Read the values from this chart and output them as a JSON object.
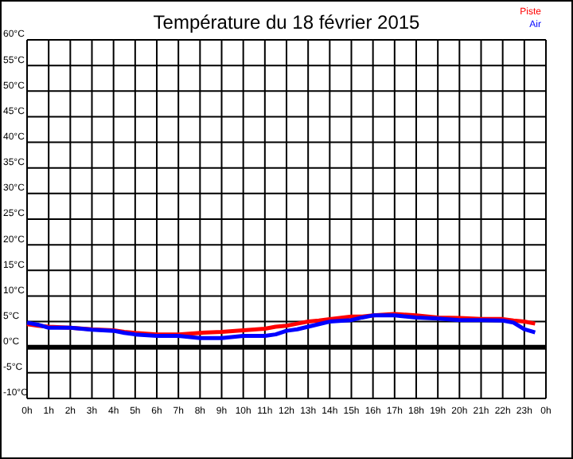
{
  "chart_data": {
    "type": "line",
    "title": "Température du 18 février 2015",
    "x": [
      "2015-02-18T00:00",
      "2015-02-18T00:30",
      "2015-02-18T01:00",
      "2015-02-18T02:00",
      "2015-02-18T03:00",
      "2015-02-18T04:00",
      "2015-02-18T04:30",
      "2015-02-18T05:00",
      "2015-02-18T06:00",
      "2015-02-18T07:00",
      "2015-02-18T08:00",
      "2015-02-18T09:00",
      "2015-02-18T10:00",
      "2015-02-18T11:00",
      "2015-02-18T11:30",
      "2015-02-18T12:00",
      "2015-02-18T12:30",
      "2015-02-18T13:00",
      "2015-02-18T13:30",
      "2015-02-18T14:00",
      "2015-02-18T15:00",
      "2015-02-18T15:30",
      "2015-02-18T16:00",
      "2015-02-18T17:00",
      "2015-02-18T18:00",
      "2015-02-18T19:00",
      "2015-02-18T20:00",
      "2015-02-18T21:00",
      "2015-02-18T22:00",
      "2015-02-18T22:30",
      "2015-02-18T23:00",
      "2015-02-18T23:30"
    ],
    "series": [
      {
        "name": "Piste",
        "color": "#ff0000",
        "values": [
          4.5,
          4.2,
          4,
          3.8,
          3.5,
          3.3,
          3,
          2.8,
          2.5,
          2.5,
          2.8,
          3,
          3.3,
          3.6,
          4,
          4.2,
          4.6,
          5,
          5.2,
          5.5,
          6,
          6,
          6.2,
          6.5,
          6.2,
          5.8,
          5.7,
          5.5,
          5.5,
          5.2,
          5,
          4.6
        ]
      },
      {
        "name": "Air",
        "color": "#0000ff",
        "values": [
          4.8,
          4.4,
          3.8,
          3.8,
          3.4,
          3.2,
          2.8,
          2.5,
          2.2,
          2.2,
          1.8,
          1.8,
          2.2,
          2.2,
          2.5,
          3.2,
          3.5,
          4,
          4.5,
          5,
          5.3,
          5.8,
          6.2,
          6.2,
          5.8,
          5.6,
          5.3,
          5.3,
          5.2,
          4.8,
          3.5,
          2.9
        ]
      }
    ],
    "xlim": [
      "2015-02-18T00:00",
      "2015-02-19T00:00"
    ],
    "xticks": [
      {
        "value": "2015-02-18T00:00",
        "label": "0h"
      },
      {
        "value": "2015-02-18T01:00",
        "label": "1h"
      },
      {
        "value": "2015-02-18T02:00",
        "label": "2h"
      },
      {
        "value": "2015-02-18T03:00",
        "label": "3h"
      },
      {
        "value": "2015-02-18T04:00",
        "label": "4h"
      },
      {
        "value": "2015-02-18T05:00",
        "label": "5h"
      },
      {
        "value": "2015-02-18T06:00",
        "label": "6h"
      },
      {
        "value": "2015-02-18T07:00",
        "label": "7h"
      },
      {
        "value": "2015-02-18T08:00",
        "label": "8h"
      },
      {
        "value": "2015-02-18T09:00",
        "label": "9h"
      },
      {
        "value": "2015-02-18T10:00",
        "label": "10h"
      },
      {
        "value": "2015-02-18T11:00",
        "label": "11h"
      },
      {
        "value": "2015-02-18T12:00",
        "label": "12h"
      },
      {
        "value": "2015-02-18T13:00",
        "label": "13h"
      },
      {
        "value": "2015-02-18T14:00",
        "label": "14h"
      },
      {
        "value": "2015-02-18T15:00",
        "label": "15h"
      },
      {
        "value": "2015-02-18T16:00",
        "label": "16h"
      },
      {
        "value": "2015-02-18T17:00",
        "label": "17h"
      },
      {
        "value": "2015-02-18T18:00",
        "label": "18h"
      },
      {
        "value": "2015-02-18T19:00",
        "label": "19h"
      },
      {
        "value": "2015-02-18T20:00",
        "label": "20h"
      },
      {
        "value": "2015-02-18T21:00",
        "label": "21h"
      },
      {
        "value": "2015-02-18T22:00",
        "label": "22h"
      },
      {
        "value": "2015-02-18T23:00",
        "label": "23h"
      },
      {
        "value": "2015-02-19T00:00",
        "label": "0h"
      }
    ],
    "ylim": [
      -10,
      60
    ],
    "yticks": [
      {
        "value": -10,
        "label": "-10°C"
      },
      {
        "value": -5,
        "label": "-5°C"
      },
      {
        "value": 0,
        "label": "0°C"
      },
      {
        "value": 5,
        "label": "5°C"
      },
      {
        "value": 10,
        "label": "10°C"
      },
      {
        "value": 15,
        "label": "15°C"
      },
      {
        "value": 20,
        "label": "20°C"
      },
      {
        "value": 25,
        "label": "25°C"
      },
      {
        "value": 30,
        "label": "30°C"
      },
      {
        "value": 35,
        "label": "35°C"
      },
      {
        "value": 40,
        "label": "40°C"
      },
      {
        "value": 45,
        "label": "45°C"
      },
      {
        "value": 50,
        "label": "50°C"
      },
      {
        "value": 55,
        "label": "55°C"
      },
      {
        "value": 60,
        "label": "60°C"
      }
    ],
    "ref_lines": [
      {
        "axis": "y",
        "value": 0,
        "color": "#000000"
      }
    ],
    "grid": true,
    "legend": "top right",
    "line_style": "solid",
    "marker": "none"
  }
}
